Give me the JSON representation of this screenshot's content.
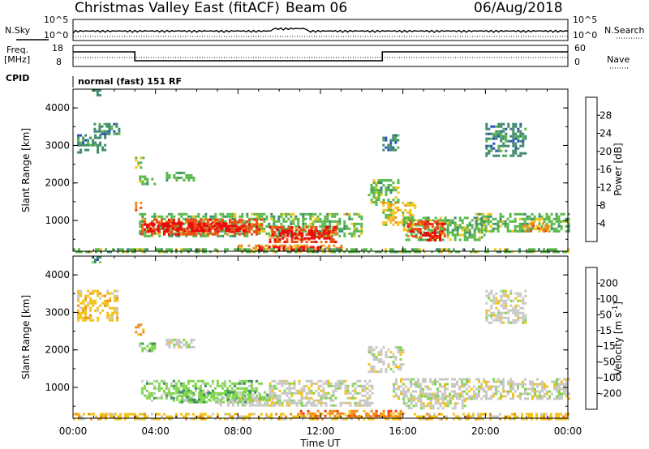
{
  "header": {
    "station": "Christmas Valley East (fitACF)",
    "beam": "Beam 06",
    "date": "06/Aug/2018"
  },
  "side_labels": {
    "nsky": "N.Sky",
    "nsearch": "N.Search",
    "freq_top": "Freq.",
    "freq_unit": "[MHz]",
    "nave": "Nave",
    "cpid": "CPID",
    "program": "normal (fast) 151 RF"
  },
  "noise_axis": {
    "left_ticks": [
      "10^5",
      "10^0"
    ],
    "right_ticks": [
      "10^5",
      "10^0"
    ]
  },
  "freq_axis": {
    "left_ticks": [
      "18",
      "8"
    ],
    "right_ticks": [
      "60",
      "0"
    ]
  },
  "chart_data": [
    {
      "type": "heatmap",
      "title": "Power",
      "xlabel": "",
      "ylabel": "Slant Range [km]",
      "x_ticks": [
        "00:00",
        "04:00",
        "08:00",
        "12:00",
        "16:00",
        "20:00",
        "00:00"
      ],
      "xlim_hours": [
        0,
        24
      ],
      "ylim": [
        180,
        4500
      ],
      "y_ticks": [
        1000,
        2000,
        3000,
        4000
      ],
      "colorbar": {
        "label": "Power [dB]",
        "ticks": [
          4,
          8,
          12,
          16,
          20,
          24,
          28
        ],
        "colors": [
          "#1a1aff",
          "#2a4fb8",
          "#3e8a6c",
          "#57b84a",
          "#f2c318",
          "#f08a1c",
          "#ee4a14",
          "#e80a0a"
        ]
      },
      "regions": [
        {
          "t": [
            0.2,
            1.6
          ],
          "r": [
            2800,
            3300
          ],
          "level": 2
        },
        {
          "t": [
            1.0,
            2.2
          ],
          "r": [
            3300,
            3600
          ],
          "level": 2
        },
        {
          "t": [
            0.9,
            1.3
          ],
          "r": [
            4350,
            4500
          ],
          "level": 2
        },
        {
          "t": [
            3.0,
            3.4
          ],
          "r": [
            2400,
            2700
          ],
          "level": 3
        },
        {
          "t": [
            3.2,
            4.0
          ],
          "r": [
            2000,
            2200
          ],
          "level": 3
        },
        {
          "t": [
            4.5,
            5.8
          ],
          "r": [
            2100,
            2300
          ],
          "level": 3
        },
        {
          "t": [
            3.0,
            3.3
          ],
          "r": [
            1300,
            1500
          ],
          "level": 5
        },
        {
          "t": [
            3.2,
            14.0
          ],
          "r": [
            600,
            1200
          ],
          "level": 3
        },
        {
          "t": [
            3.3,
            9.2
          ],
          "r": [
            650,
            1050
          ],
          "level": 6
        },
        {
          "t": [
            3.6,
            8.4
          ],
          "r": [
            700,
            950
          ],
          "level": 7
        },
        {
          "t": [
            9.5,
            12.8
          ],
          "r": [
            450,
            850
          ],
          "level": 6
        },
        {
          "t": [
            10.0,
            12.4
          ],
          "r": [
            500,
            750
          ],
          "level": 7
        },
        {
          "t": [
            8.0,
            13.0
          ],
          "r": [
            220,
            360
          ],
          "level": 5
        },
        {
          "t": [
            9.0,
            12.0
          ],
          "r": [
            230,
            320
          ],
          "level": 7
        },
        {
          "t": [
            0.0,
            24.0
          ],
          "r": [
            190,
            260
          ],
          "level": 3
        },
        {
          "t": [
            14.3,
            15.8
          ],
          "r": [
            1400,
            2100
          ],
          "level": 3
        },
        {
          "t": [
            15.0,
            16.6
          ],
          "r": [
            900,
            1500
          ],
          "level": 4
        },
        {
          "t": [
            16.0,
            20.0
          ],
          "r": [
            500,
            1100
          ],
          "level": 3
        },
        {
          "t": [
            16.2,
            18.0
          ],
          "r": [
            550,
            1000
          ],
          "level": 6
        },
        {
          "t": [
            16.8,
            17.8
          ],
          "r": [
            450,
            700
          ],
          "level": 7
        },
        {
          "t": [
            19.5,
            24.0
          ],
          "r": [
            700,
            1200
          ],
          "level": 3
        },
        {
          "t": [
            21.8,
            23.0
          ],
          "r": [
            700,
            950
          ],
          "level": 5
        },
        {
          "t": [
            20.0,
            22.0
          ],
          "r": [
            2700,
            3600
          ],
          "level": 2
        },
        {
          "t": [
            15.0,
            15.8
          ],
          "r": [
            2900,
            3300
          ],
          "level": 2
        }
      ]
    },
    {
      "type": "heatmap",
      "title": "Velocity",
      "xlabel": "Time UT",
      "ylabel": "Slant Range [km]",
      "x_ticks": [
        "00:00",
        "04:00",
        "08:00",
        "12:00",
        "16:00",
        "20:00",
        "00:00"
      ],
      "xlim_hours": [
        0,
        24
      ],
      "ylim": [
        180,
        4500
      ],
      "y_ticks": [
        1000,
        2000,
        3000,
        4000
      ],
      "colorbar": {
        "label": "Velocity [m s^-1]",
        "ticks": [
          -200,
          -100,
          -50,
          -15,
          15,
          50,
          100,
          200
        ],
        "colors": [
          "#e80a0a",
          "#f03c10",
          "#f08a1c",
          "#f2c318",
          "#c8c8c4",
          "#7fd64a",
          "#3e8a6c",
          "#2a4fb8",
          "#1a1aff"
        ]
      },
      "regions": [
        {
          "t": [
            0.2,
            2.2
          ],
          "r": [
            2800,
            3600
          ],
          "level": 3
        },
        {
          "t": [
            0.9,
            1.3
          ],
          "r": [
            4350,
            4500
          ],
          "level": 6
        },
        {
          "t": [
            3.0,
            3.4
          ],
          "r": [
            2400,
            2700
          ],
          "level": 2
        },
        {
          "t": [
            3.2,
            4.0
          ],
          "r": [
            2000,
            2200
          ],
          "level": 5
        },
        {
          "t": [
            4.5,
            5.8
          ],
          "r": [
            2100,
            2300
          ],
          "level": 4
        },
        {
          "t": [
            3.3,
            9.2
          ],
          "r": [
            650,
            1200
          ],
          "level": 5
        },
        {
          "t": [
            5.0,
            9.5
          ],
          "r": [
            600,
            900
          ],
          "level": 5
        },
        {
          "t": [
            7.0,
            10.0
          ],
          "r": [
            500,
            750
          ],
          "level": 4
        },
        {
          "t": [
            9.5,
            14.5
          ],
          "r": [
            500,
            1200
          ],
          "level": 4
        },
        {
          "t": [
            0.0,
            24.0
          ],
          "r": [
            190,
            320
          ],
          "level": 3
        },
        {
          "t": [
            11.0,
            16.0
          ],
          "r": [
            220,
            400
          ],
          "level": 2
        },
        {
          "t": [
            14.3,
            16.0
          ],
          "r": [
            1400,
            2100
          ],
          "level": 4
        },
        {
          "t": [
            15.5,
            24.0
          ],
          "r": [
            700,
            1250
          ],
          "level": 4
        },
        {
          "t": [
            16.0,
            19.0
          ],
          "r": [
            450,
            800
          ],
          "level": 4
        },
        {
          "t": [
            20.0,
            22.0
          ],
          "r": [
            2700,
            3600
          ],
          "level": 4
        }
      ]
    }
  ]
}
